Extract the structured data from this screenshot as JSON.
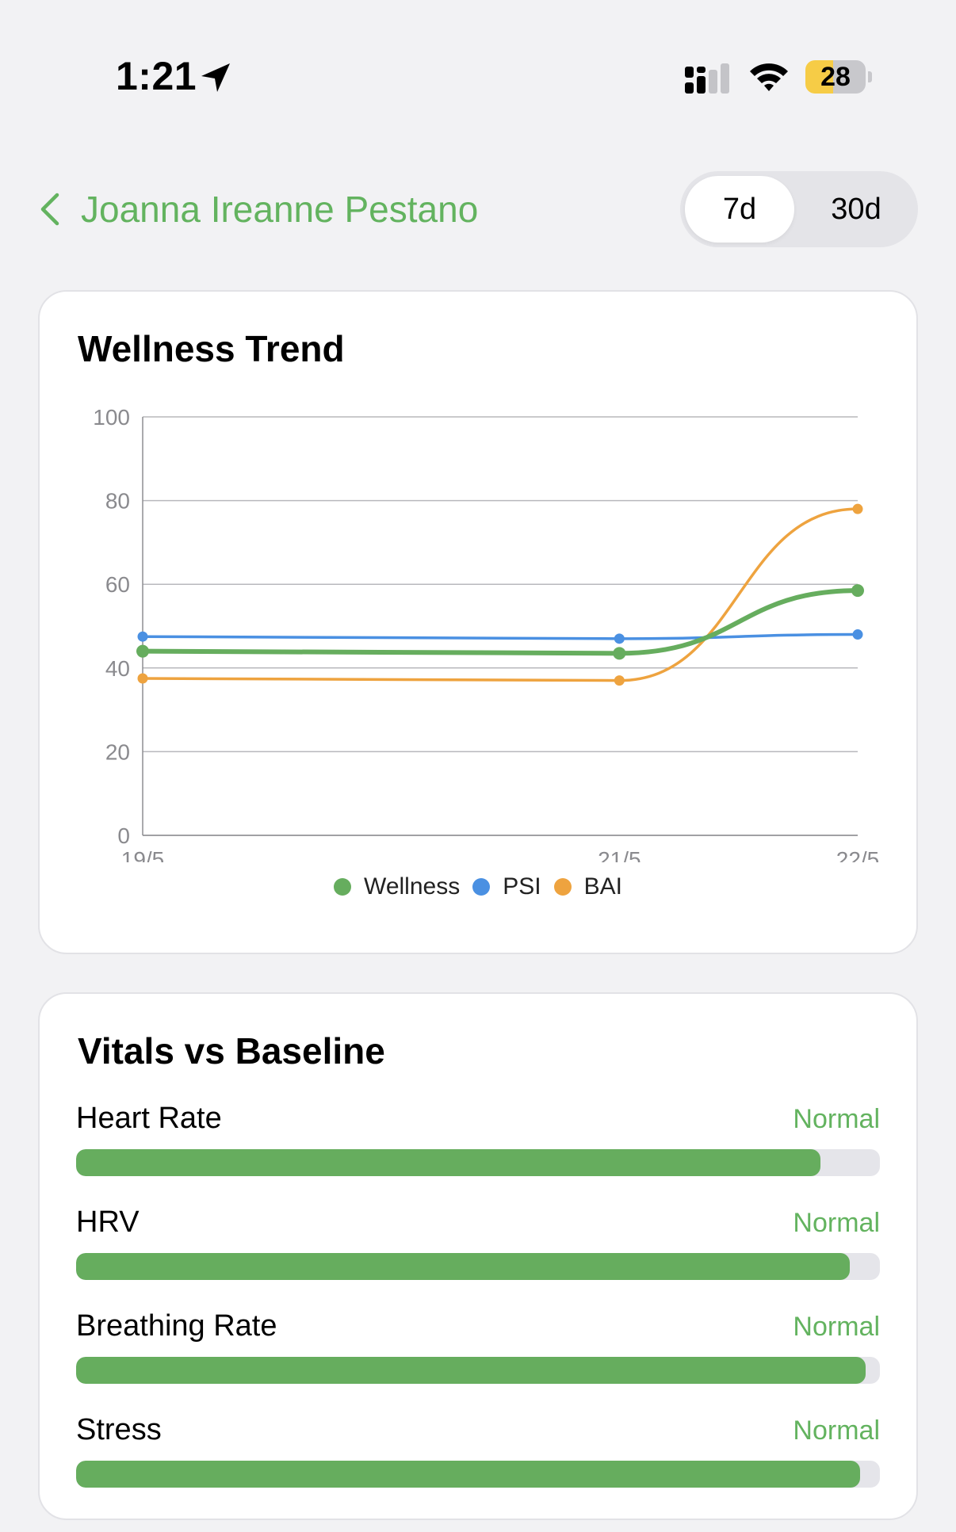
{
  "status_bar": {
    "time": "1:21",
    "battery_level": "28",
    "icons": [
      "location-arrow-icon",
      "cellular-signal-icon",
      "wifi-icon",
      "battery-icon"
    ]
  },
  "header": {
    "back_icon": "chevron-left-icon",
    "title": "Joanna Ireanne Pestano",
    "segments": [
      {
        "label": "7d",
        "selected": true
      },
      {
        "label": "30d",
        "selected": false
      }
    ]
  },
  "trend": {
    "title": "Wellness Trend"
  },
  "chart_data": {
    "type": "line",
    "title": "Wellness Trend",
    "xlabel": "",
    "ylabel": "",
    "x": [
      "19/5",
      "21/5",
      "22/5"
    ],
    "ylim": [
      0,
      100
    ],
    "yticks": [
      0,
      20,
      40,
      60,
      80,
      100
    ],
    "grid": true,
    "legend": "bottom",
    "series": [
      {
        "name": "Wellness",
        "color": "#66ad5e",
        "values": [
          44,
          43.5,
          58.5
        ]
      },
      {
        "name": "PSI",
        "color": "#4a90e2",
        "values": [
          47.5,
          47,
          48
        ]
      },
      {
        "name": "BAI",
        "color": "#eea33f",
        "values": [
          37.5,
          37,
          78
        ]
      }
    ]
  },
  "vitals": {
    "title": "Vitals vs Baseline",
    "items": [
      {
        "label": "Heart Rate",
        "status": "Normal",
        "level": 0.926
      },
      {
        "label": "HRV",
        "status": "Normal",
        "level": 0.963
      },
      {
        "label": "Breathing Rate",
        "status": "Normal",
        "level": 0.982
      },
      {
        "label": "Stress",
        "status": "Normal",
        "level": 0.975
      }
    ],
    "colors": {
      "fill": "#66ad5e",
      "track": "#e5e5ea",
      "status": "#63b35f"
    }
  }
}
